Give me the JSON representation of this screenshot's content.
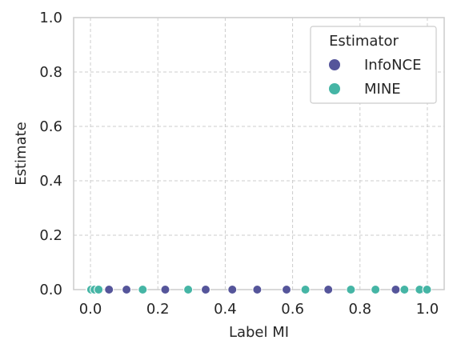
{
  "chart_data": {
    "type": "scatter",
    "title": "",
    "xlabel": "Label MI",
    "ylabel": "Estimate",
    "xlim": [
      -0.05,
      1.05
    ],
    "ylim": [
      0.0,
      1.0
    ],
    "xticks": [
      0.0,
      0.2,
      0.4,
      0.6,
      0.8,
      1.0
    ],
    "xtick_labels": [
      "0.0",
      "0.2",
      "0.4",
      "0.6",
      "0.8",
      "1.0"
    ],
    "yticks": [
      0.0,
      0.2,
      0.4,
      0.6,
      0.8,
      1.0
    ],
    "ytick_labels": [
      "0.0",
      "0.2",
      "0.4",
      "0.6",
      "0.8",
      "1.0"
    ],
    "grid": true,
    "legend": {
      "title": "Estimator",
      "placement": "top-right"
    },
    "series": [
      {
        "name": "InfoNCE",
        "color": "#55559a",
        "x": [
          0.0,
          0.006,
          0.055,
          0.107,
          0.222,
          0.342,
          0.421,
          0.495,
          0.582,
          0.706,
          0.906,
          0.985,
          0.996
        ],
        "y": [
          0.0,
          0.0,
          0.0,
          0.0,
          0.0,
          0.0,
          0.0,
          0.0,
          0.0,
          0.0,
          0.0,
          0.0,
          0.0
        ]
      },
      {
        "name": "MINE",
        "color": "#45b5a5",
        "x": [
          0.002,
          0.012,
          0.024,
          0.155,
          0.29,
          0.638,
          0.773,
          0.846,
          0.932,
          0.977,
          0.999
        ],
        "y": [
          0.0,
          0.0,
          0.0,
          0.0,
          0.0,
          0.0,
          0.0,
          0.0,
          0.0,
          0.0,
          0.0
        ]
      }
    ]
  }
}
